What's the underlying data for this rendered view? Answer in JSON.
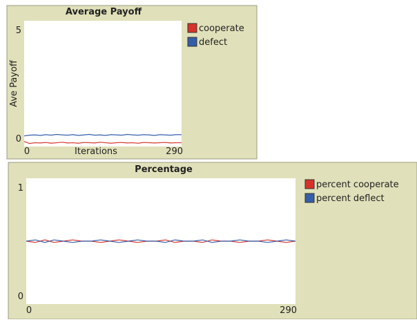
{
  "chart_data": [
    {
      "type": "line",
      "title": "Average Payoff",
      "xlabel": "Iterations",
      "ylabel": "Ave Payoff",
      "x": [
        0,
        10,
        20,
        30,
        40,
        50,
        60,
        70,
        80,
        90,
        100,
        110,
        120,
        130,
        140,
        150,
        160,
        170,
        180,
        190,
        200,
        210,
        220,
        230,
        240,
        250,
        260,
        270,
        280,
        290
      ],
      "xlim": [
        0,
        290
      ],
      "xticks": [
        0,
        290
      ],
      "ylim": [
        0,
        5
      ],
      "yticks": [
        0,
        5
      ],
      "series": [
        {
          "name": "cooperate",
          "color": "#d73229",
          "values": [
            0.2,
            0.12,
            0.15,
            0.14,
            0.16,
            0.13,
            0.15,
            0.17,
            0.14,
            0.15,
            0.13,
            0.16,
            0.15,
            0.14,
            0.17,
            0.15,
            0.13,
            0.15,
            0.16,
            0.14,
            0.15,
            0.13,
            0.16,
            0.15,
            0.14,
            0.15,
            0.16,
            0.14,
            0.15,
            0.15
          ]
        },
        {
          "name": "defect",
          "color": "#345ea8",
          "values": [
            0.42,
            0.45,
            0.46,
            0.44,
            0.47,
            0.45,
            0.48,
            0.46,
            0.45,
            0.47,
            0.44,
            0.46,
            0.48,
            0.45,
            0.46,
            0.44,
            0.47,
            0.46,
            0.45,
            0.48,
            0.46,
            0.45,
            0.47,
            0.46,
            0.44,
            0.47,
            0.46,
            0.45,
            0.47,
            0.47
          ]
        }
      ]
    },
    {
      "type": "line",
      "title": "Percentage",
      "x": [
        0,
        10,
        20,
        30,
        40,
        50,
        60,
        70,
        80,
        90,
        100,
        110,
        120,
        130,
        140,
        150,
        160,
        170,
        180,
        190,
        200,
        210,
        220,
        230,
        240,
        250,
        260,
        270,
        280,
        290
      ],
      "xlim": [
        0,
        290
      ],
      "xticks": [
        0,
        290
      ],
      "ylim": [
        0,
        1
      ],
      "yticks": [
        0,
        1
      ],
      "series": [
        {
          "name": "percent cooperate",
          "color": "#d73229",
          "values": [
            0.5,
            0.49,
            0.51,
            0.49,
            0.5,
            0.51,
            0.5,
            0.5,
            0.49,
            0.5,
            0.51,
            0.5,
            0.49,
            0.5,
            0.5,
            0.51,
            0.49,
            0.5,
            0.5,
            0.49,
            0.51,
            0.5,
            0.5,
            0.49,
            0.5,
            0.5,
            0.51,
            0.5,
            0.49,
            0.5
          ]
        },
        {
          "name": "percent deflect",
          "color": "#345ea8",
          "values": [
            0.5,
            0.51,
            0.49,
            0.51,
            0.5,
            0.49,
            0.5,
            0.5,
            0.51,
            0.5,
            0.49,
            0.5,
            0.51,
            0.5,
            0.5,
            0.49,
            0.51,
            0.5,
            0.5,
            0.51,
            0.49,
            0.5,
            0.5,
            0.51,
            0.5,
            0.5,
            0.49,
            0.5,
            0.51,
            0.5
          ]
        }
      ]
    }
  ]
}
